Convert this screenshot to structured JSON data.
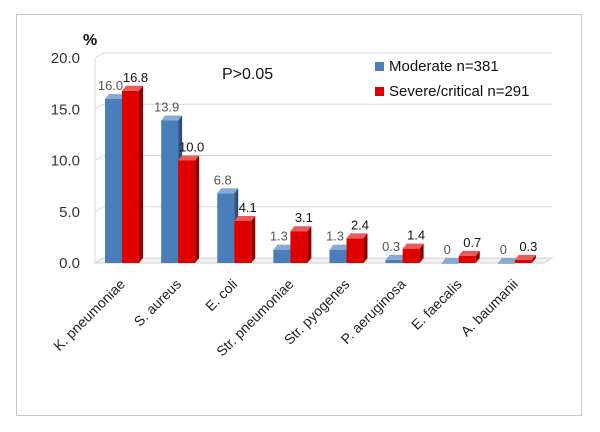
{
  "chart_data": {
    "type": "bar",
    "ylabel": "%",
    "annotation": "P>0.05",
    "ylim": [
      0,
      20
    ],
    "yticks": [
      "0.0",
      "5.0",
      "10.0",
      "15.0",
      "20.0"
    ],
    "yticks_values": [
      0,
      5,
      10,
      15,
      20
    ],
    "categories": [
      "K. pneumoniae",
      "S. aureus",
      "E. coli",
      "Str. pneumoniae",
      "Str. pyogenes",
      "P. aeruginosa",
      "E. faecalis",
      "A. baumanii"
    ],
    "series": [
      {
        "name": "Moderate n=381",
        "color": "#4a7ebb",
        "values": [
          16.0,
          13.9,
          6.8,
          1.3,
          1.3,
          0.3,
          0,
          0
        ],
        "labels": [
          "16.0",
          "13.9",
          "6.8",
          "1.3",
          "1.3",
          "0.3",
          "0",
          "0"
        ]
      },
      {
        "name": "Severe/critical n=291",
        "color": "#e00000",
        "values": [
          16.8,
          10.0,
          4.1,
          3.1,
          2.4,
          1.4,
          0.7,
          0.3
        ],
        "labels": [
          "16.8",
          "10.0",
          "4.1",
          "3.1",
          "2.4",
          "1.4",
          "0.7",
          "0.3"
        ]
      }
    ],
    "legend_position": "top-right",
    "grid": true
  }
}
